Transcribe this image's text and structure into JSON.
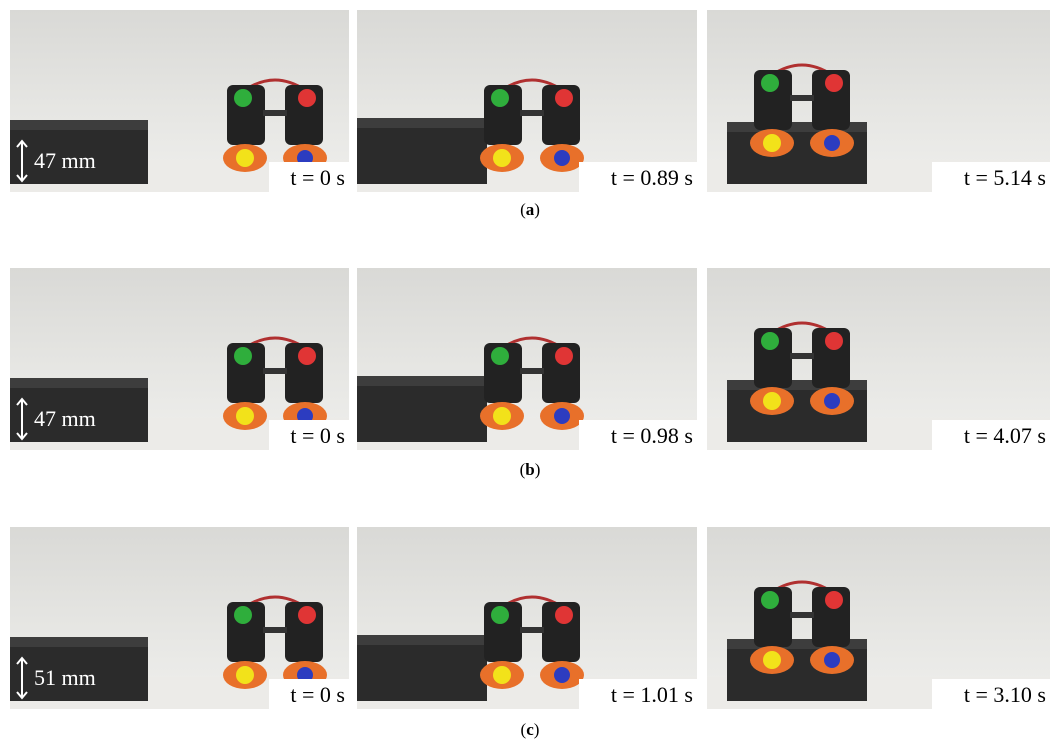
{
  "panels": [
    {
      "label": "a",
      "height": "47 mm",
      "frames": [
        {
          "time": "t = 0 s"
        },
        {
          "time": "t = 0.89 s"
        },
        {
          "time": "t = 5.14 s"
        }
      ]
    },
    {
      "label": "b",
      "height": "47 mm",
      "frames": [
        {
          "time": "t = 0 s"
        },
        {
          "time": "t = 0.98 s"
        },
        {
          "time": "t = 4.07 s"
        }
      ]
    },
    {
      "label": "c",
      "height": "51 mm",
      "frames": [
        {
          "time": "t = 0 s"
        },
        {
          "time": "t = 1.01 s"
        },
        {
          "time": "t = 3.10 s"
        }
      ]
    }
  ]
}
